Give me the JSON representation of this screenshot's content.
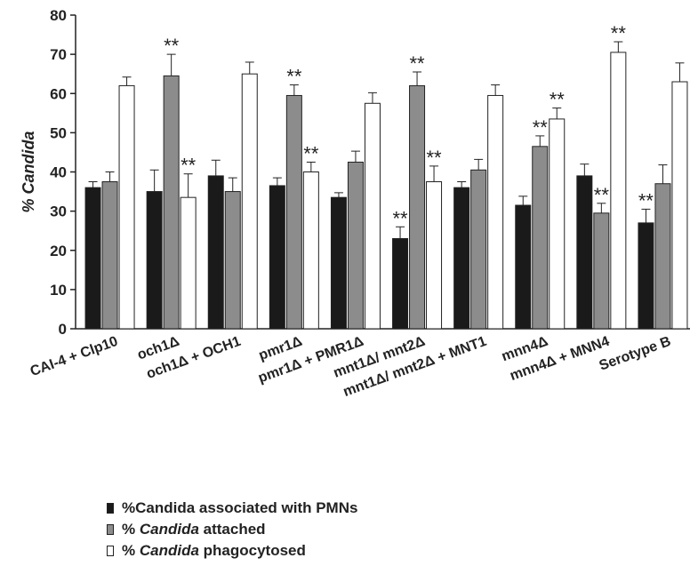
{
  "chart_data": {
    "type": "bar",
    "ylabel": "% Candida",
    "ylim": [
      0,
      80
    ],
    "yticks": [
      "0",
      "10",
      "20",
      "30",
      "40",
      "50",
      "60",
      "70",
      "80"
    ],
    "categories": [
      "CAI-4 + Clp10",
      "och1Δ",
      "och1Δ + OCH1",
      "pmr1Δ",
      "pmr1Δ + PMR1Δ",
      "mnt1Δ/ mnt2Δ",
      "mnt1Δ/ mnt2Δ + MNT1",
      "mnn4Δ",
      "mnn4Δ + MNN4",
      "Serotype B"
    ],
    "series": [
      {
        "name": "%Candida associated with PMNs",
        "color": "#1a1a1a",
        "values": [
          36,
          35,
          39,
          36.5,
          33.5,
          23,
          36,
          31.5,
          39,
          27
        ],
        "errors": [
          1.5,
          5.5,
          4,
          2,
          1.2,
          3,
          1.5,
          2.3,
          3,
          3.5
        ],
        "sig": [
          "",
          "",
          "",
          "",
          "",
          "**",
          "",
          "",
          "",
          "**"
        ]
      },
      {
        "name": "% Candida attached",
        "color": "#8c8c8c",
        "values": [
          37.5,
          64.5,
          35,
          59.5,
          42.5,
          62,
          40.5,
          46.5,
          29.5,
          37
        ],
        "errors": [
          2.5,
          5.5,
          3.5,
          2.7,
          2.8,
          3.5,
          2.7,
          2.7,
          2.5,
          4.8
        ],
        "sig": [
          "",
          "**",
          "",
          "**",
          "",
          "**",
          "",
          "**",
          "**",
          ""
        ]
      },
      {
        "name": "% Candida phagocytosed",
        "color": "#ffffff",
        "values": [
          62,
          33.5,
          65,
          40,
          57.5,
          37.5,
          59.5,
          53.5,
          70.5,
          63
        ],
        "errors": [
          2.2,
          6,
          3,
          2.5,
          2.7,
          4,
          2.7,
          2.8,
          2.7,
          4.8
        ],
        "sig": [
          "",
          "**",
          "",
          "**",
          "",
          "**",
          "",
          "**",
          "**",
          ""
        ]
      }
    ],
    "legend_position": "bottom-left"
  },
  "legend": {
    "items": [
      {
        "prefix": "%Candida associated with PMNs",
        "italic": "",
        "suffix": "",
        "color": "#1a1a1a"
      },
      {
        "prefix": "% ",
        "italic": "Candida",
        "suffix": " attached",
        "color": "#8c8c8c"
      },
      {
        "prefix": "% ",
        "italic": "Candida",
        "suffix": " phagocytosed",
        "color": "#ffffff"
      }
    ]
  }
}
